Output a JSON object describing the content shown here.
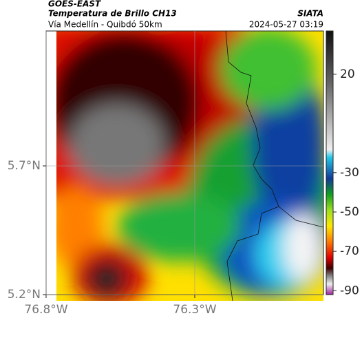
{
  "header": {
    "satellite": "GOES-EAST",
    "title": "Temperatura de Brillo CH13",
    "subtitle": "Vía Medellín - Quibdó 50km",
    "source": "SIATA",
    "datetime": "2024-05-27 03:19"
  },
  "map": {
    "xlim": [
      -76.8,
      -75.867
    ],
    "ylim": [
      5.2,
      6.224
    ],
    "xticks": [
      {
        "value": -76.8,
        "label": "76.8°W"
      },
      {
        "value": -76.3,
        "label": "76.3°W"
      }
    ],
    "yticks": [
      {
        "value": 5.7,
        "label": "5.7°N"
      },
      {
        "value": 5.2,
        "label": "5.2°N"
      }
    ],
    "grid": true
  },
  "colorbar": {
    "lim": [
      42,
      -92
    ],
    "ticks": [
      20,
      -30,
      -50,
      -70,
      -90
    ]
  }
}
